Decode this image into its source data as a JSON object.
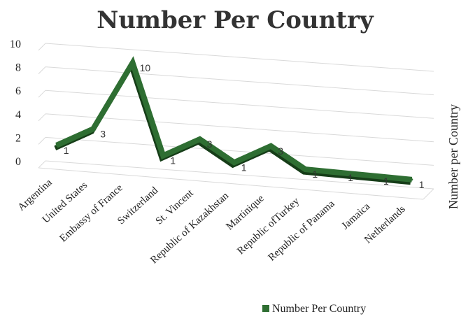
{
  "chart_data": {
    "type": "line",
    "title": "Number Per Country",
    "ylabel": "Number per Country",
    "categories": [
      "Argentina",
      "United States",
      "Embassy of France",
      "Switzerland",
      "St. Vincent",
      "Republic of Kazakhstan",
      "Martinique",
      "Republic ofTurkey",
      "Republic of Panama",
      "Jamaica",
      "Netherlands"
    ],
    "series": [
      {
        "name": "Number Per Country",
        "values": [
          1,
          3,
          10,
          1,
          3,
          1,
          3,
          1,
          1,
          1,
          1
        ],
        "color": "#2e6e32"
      }
    ],
    "ylim": [
      0,
      10
    ],
    "yticks": [
      0,
      2,
      4,
      6,
      8,
      10
    ],
    "grid": true,
    "legend": "bottom",
    "style": "3d-line"
  }
}
